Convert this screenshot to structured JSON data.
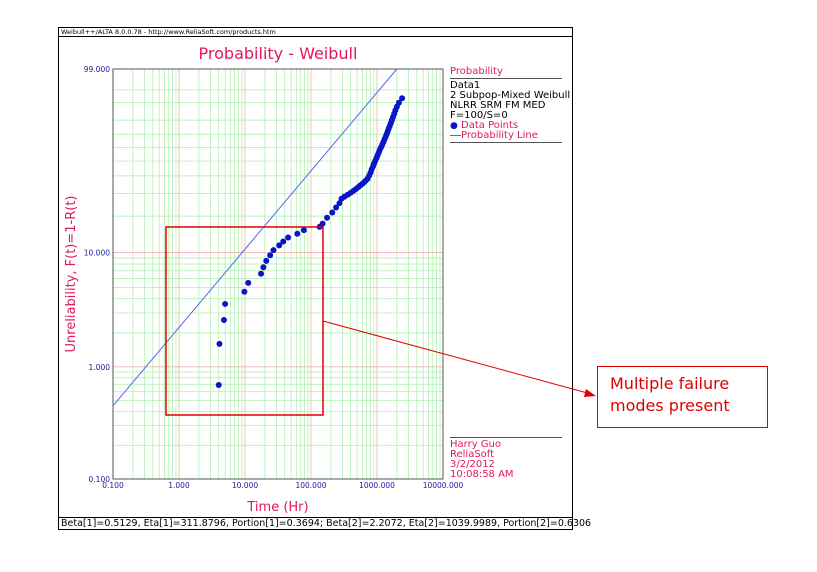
{
  "window": {
    "header_text": "Weibull++/ALTA 8.0.0.78 - http://www.ReliaSoft.com/products.htm",
    "footer_text": "Beta[1]=0.5129, Eta[1]=311.8796, Portion[1]=0.3694; Beta[2]=2.2072, Eta[2]=1039.9989, Portion[2]=0.6306"
  },
  "legend": {
    "title": "Probability",
    "lines": [
      "Data1",
      "2 Subpop-Mixed Weibull",
      "NLRR SRM FM MED",
      "F=100/S=0"
    ],
    "data_points_label": "Data Points",
    "probability_line_label": "Probability Line"
  },
  "info": {
    "user": "Harry Guo",
    "company": "ReliaSoft",
    "date": "3/2/2012",
    "time": "10:08:58 AM"
  },
  "callout": {
    "text_line1": "Multiple failure",
    "text_line2": "modes present"
  },
  "colors": {
    "accent": "#e0185f",
    "axis_ticks": "#2020a0",
    "data_points": "#0a14c8",
    "probability_line": "#5566ee",
    "grid_major": "#f5a3a3",
    "grid_minor": "#a8eea8",
    "callout": "#e00000"
  },
  "chart_data": {
    "type": "scatter",
    "title": "Probability - Weibull",
    "xlabel": "Time (Hr)",
    "ylabel": "Unreliability, F(t)=1-R(t)",
    "x_scale": "log",
    "y_scale": "weibull",
    "xlim": [
      0.1,
      10000
    ],
    "ylim": [
      0.1,
      99
    ],
    "x_tick_labels": [
      "0.100",
      "1.000",
      "10.000",
      "100.000",
      "1000.000",
      "10000.000"
    ],
    "y_tick_labels": [
      "0.100",
      "1.000",
      "10.000",
      "99.000"
    ],
    "grid": true,
    "legend_position": "right",
    "series": [
      {
        "name": "Data Points",
        "kind": "points",
        "x": [
          4.0,
          4.1,
          4.8,
          5.0,
          9.8,
          11.2,
          17.5,
          19,
          21,
          24,
          27,
          33,
          38,
          45,
          62,
          78,
          135,
          150,
          175,
          210,
          240,
          270,
          290,
          320,
          360,
          400,
          440,
          480,
          520,
          560,
          600,
          640,
          680,
          720,
          760,
          800,
          830,
          870,
          900,
          940,
          980,
          1020,
          1060,
          1100,
          1150,
          1200,
          1250,
          1300,
          1350,
          1400,
          1450,
          1500,
          1560,
          1620,
          1680,
          1750,
          1820,
          1900,
          2000,
          2150,
          2400
        ],
        "y": [
          0.69,
          1.6,
          2.6,
          3.6,
          4.6,
          5.5,
          6.6,
          7.5,
          8.5,
          9.5,
          10.5,
          11.5,
          12.4,
          13.4,
          14.4,
          15.4,
          16.4,
          17.4,
          19.4,
          21.4,
          23.4,
          25.3,
          27.3,
          28.3,
          29.3,
          30.3,
          31.3,
          32.3,
          33.3,
          34.3,
          35.2,
          36.2,
          37.2,
          38.2,
          40.2,
          42.2,
          44.2,
          46.2,
          48.2,
          50.1,
          52.1,
          54.1,
          56.1,
          58.1,
          60.1,
          62.1,
          64.1,
          66.1,
          68.0,
          70.0,
          72.0,
          74.0,
          76.0,
          78.0,
          80.0,
          82.0,
          84.0,
          86.0,
          88.0,
          90.0,
          92.0
        ]
      },
      {
        "name": "Probability Line",
        "kind": "line",
        "x": [
          0.1,
          2000
        ],
        "y": [
          0.45,
          99
        ]
      }
    ]
  }
}
